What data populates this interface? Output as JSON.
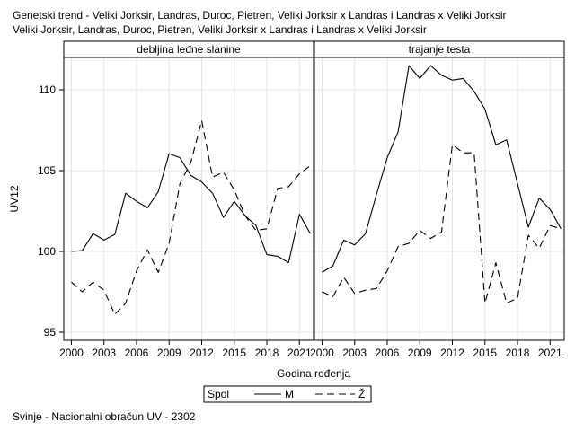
{
  "title_lines": [
    "Genetski trend - Veliki Jorksir, Landras, Duroc, Pietren, Veliki Jorksir x Landras i Landras x Veliki Jorksir",
    "Veliki Jorksir, Landras, Duroc, Pietren, Veliki Jorksir x Landras i Landras x Veliki Jorksir"
  ],
  "footnote": "Svinje - Nacionalni obračun UV - 2302",
  "chart_data": {
    "type": "line",
    "ylabel": "UV12",
    "xlabel": "Godina rođenja",
    "ylim": [
      94.5,
      112
    ],
    "xlim": [
      1999.3,
      2022.3
    ],
    "yticks": [
      95,
      100,
      105,
      110
    ],
    "xticks": [
      2000,
      2003,
      2006,
      2009,
      2012,
      2015,
      2018,
      2021
    ],
    "grid": true,
    "legend": {
      "title": "Spol",
      "position": "bottom-center",
      "entries": [
        "M",
        "Ž"
      ]
    },
    "panels": [
      {
        "label": "debljina leđne slanine",
        "x": [
          2000,
          2001,
          2002,
          2003,
          2004,
          2005,
          2006,
          2007,
          2008,
          2009,
          2010,
          2011,
          2012,
          2013,
          2014,
          2015,
          2016,
          2017,
          2018,
          2019,
          2020,
          2021,
          2022
        ],
        "series": [
          {
            "name": "M",
            "style": "solid",
            "values": [
              100.0,
              100.05,
              101.1,
              100.7,
              101.05,
              103.6,
              103.1,
              102.7,
              103.7,
              106.05,
              105.8,
              104.7,
              104.3,
              103.6,
              102.1,
              103.1,
              102.2,
              101.6,
              99.8,
              99.7,
              99.3,
              102.3,
              101.1
            ]
          },
          {
            "name": "Ž",
            "style": "dashed",
            "values": [
              98.1,
              97.5,
              98.1,
              97.6,
              96.1,
              96.8,
              98.8,
              100.1,
              98.7,
              100.5,
              104.2,
              105.5,
              108.1,
              104.6,
              104.9,
              103.8,
              102.2,
              101.3,
              101.4,
              103.9,
              104.0,
              104.8,
              105.3
            ]
          }
        ]
      },
      {
        "label": "trajanje testa",
        "x": [
          2000,
          2001,
          2002,
          2003,
          2004,
          2005,
          2006,
          2007,
          2008,
          2009,
          2010,
          2011,
          2012,
          2013,
          2014,
          2015,
          2016,
          2017,
          2018,
          2019,
          2020,
          2021,
          2022
        ],
        "series": [
          {
            "name": "M",
            "style": "solid",
            "values": [
              98.7,
              99.1,
              100.7,
              100.4,
              101.1,
              103.5,
              105.8,
              107.4,
              111.5,
              110.7,
              111.5,
              110.9,
              110.6,
              110.7,
              109.9,
              108.8,
              106.6,
              106.9,
              104.2,
              101.5,
              103.3,
              102.6,
              101.4
            ]
          },
          {
            "name": "Ž",
            "style": "dashed",
            "values": [
              97.5,
              97.2,
              98.4,
              97.4,
              97.6,
              97.7,
              98.8,
              100.3,
              100.5,
              101.3,
              100.8,
              101.2,
              106.6,
              106.1,
              106.1,
              96.8,
              99.3,
              96.8,
              97.1,
              101.0,
              100.2,
              101.6,
              101.4
            ]
          }
        ]
      }
    ]
  }
}
